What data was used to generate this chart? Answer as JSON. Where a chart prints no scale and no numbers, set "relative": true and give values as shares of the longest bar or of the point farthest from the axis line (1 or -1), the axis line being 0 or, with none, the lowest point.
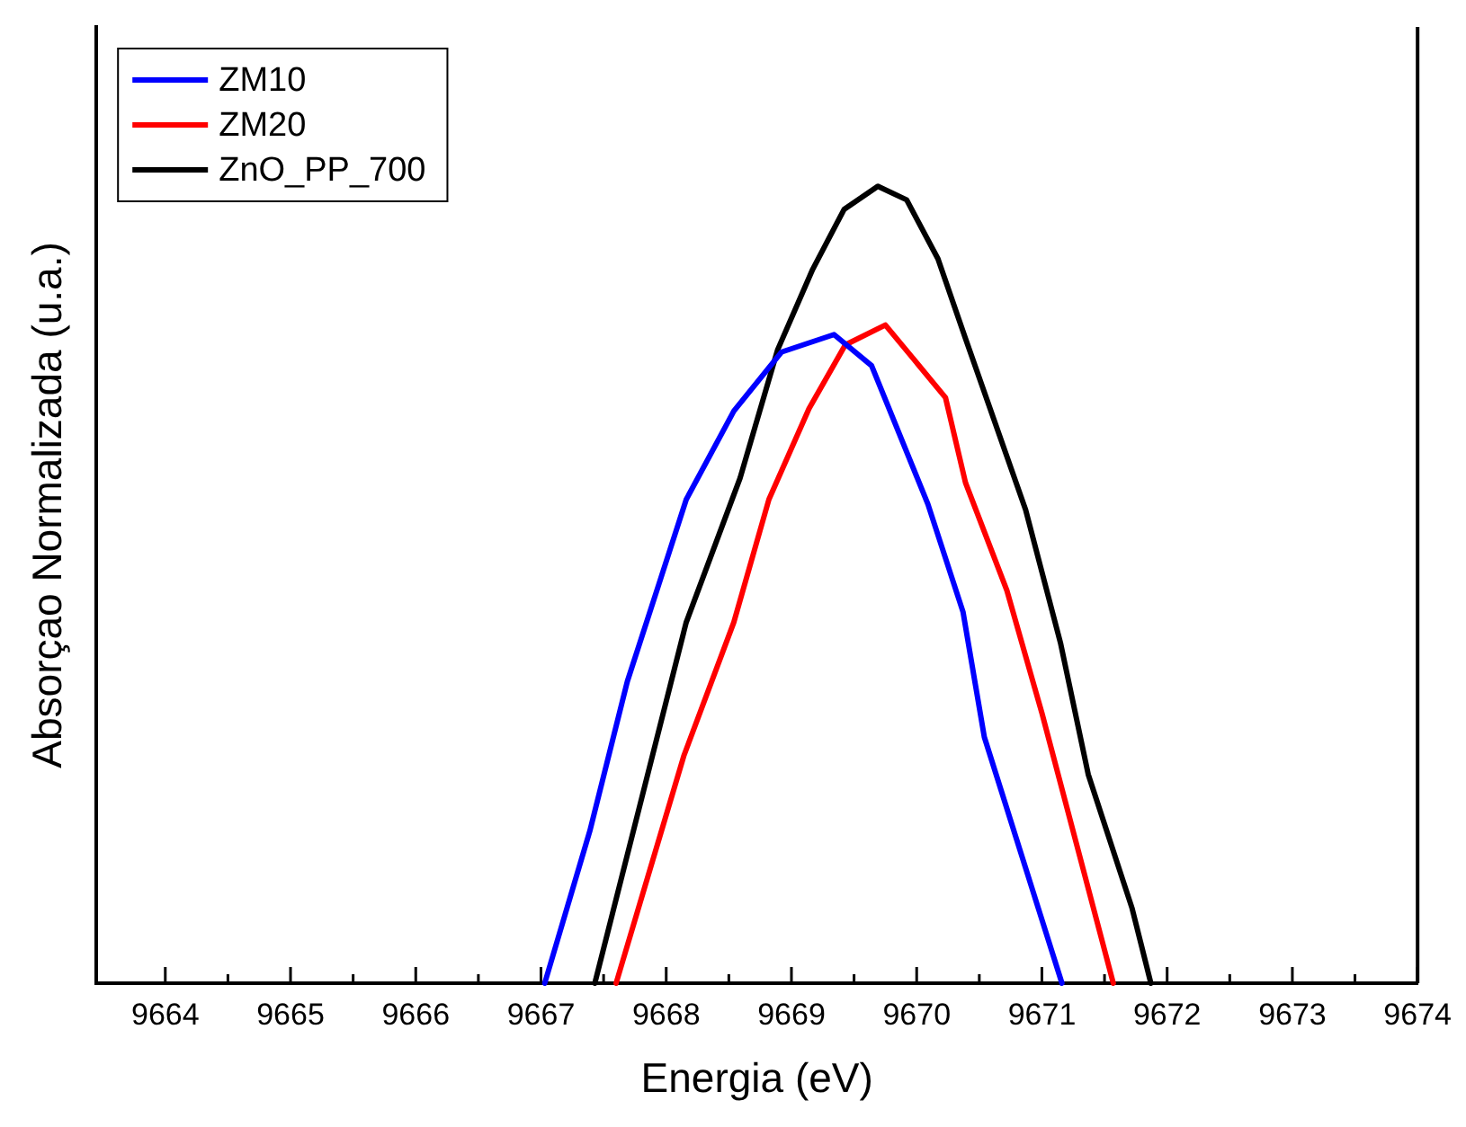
{
  "chart_data": {
    "type": "line",
    "xlabel": "Energia (eV)",
    "ylabel": "Absorçao Normalizada (u.a.)",
    "relative": true,
    "legend": "top left",
    "grid": false,
    "marker": "none",
    "line_style": "solid",
    "xlim": [
      9663.45,
      9674
    ],
    "xticks": [
      9664,
      {
        "value": 9664.5,
        "label": null
      },
      9665,
      {
        "value": 9665.5,
        "label": null
      },
      9666,
      {
        "value": 9666.5,
        "label": null
      },
      9667,
      {
        "value": 9667.5,
        "label": null
      },
      9668,
      {
        "value": 9668.5,
        "label": null
      },
      9669,
      {
        "value": 9669.5,
        "label": null
      },
      9670,
      {
        "value": 9670.5,
        "label": null
      },
      9671,
      {
        "value": 9671.5,
        "label": null
      },
      9672,
      {
        "value": 9672.5,
        "label": null
      },
      9673,
      {
        "value": 9673.5,
        "label": null
      },
      9674
    ],
    "series": [
      {
        "name": "ZM10",
        "color": "#0000ff",
        "x": [
          9667.03,
          9667.39,
          9667.69,
          9667.94,
          9668.16,
          9668.54,
          9668.92,
          9669.34,
          9669.64,
          9670.09,
          9670.37,
          9670.54,
          9671.16
        ],
        "values": [
          0,
          0.191,
          0.379,
          0.5,
          0.607,
          0.718,
          0.792,
          0.814,
          0.775,
          0.601,
          0.466,
          0.309,
          0
        ]
      },
      {
        "name": "ZM20",
        "color": "#ff0000",
        "x": [
          9667.6,
          9668.14,
          9668.54,
          9668.82,
          9669.14,
          9669.43,
          9669.75,
          9670.23,
          9670.39,
          9670.72,
          9671.0,
          9671.57
        ],
        "values": [
          0,
          0.285,
          0.453,
          0.607,
          0.721,
          0.801,
          0.826,
          0.735,
          0.628,
          0.493,
          0.339,
          0
        ]
      },
      {
        "name": "ZnO_PP_700",
        "color": "#000000",
        "x": [
          9667.43,
          9668.16,
          9668.59,
          9668.89,
          9669.17,
          9669.42,
          9669.69,
          9669.92,
          9670.17,
          9670.39,
          9670.87,
          9671.15,
          9671.37,
          9671.72,
          9671.87
        ],
        "values": [
          0,
          0.453,
          0.634,
          0.795,
          0.896,
          0.971,
          1,
          0.983,
          0.909,
          0.809,
          0.594,
          0.426,
          0.262,
          0.094,
          0
        ]
      }
    ]
  }
}
